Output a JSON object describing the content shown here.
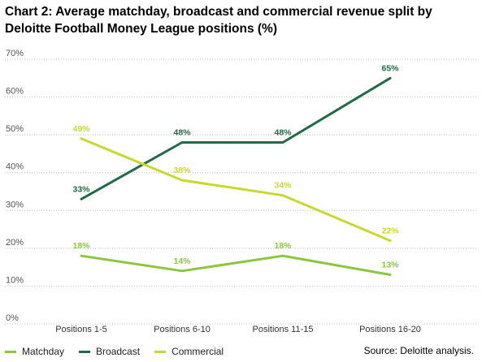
{
  "chart_data": {
    "type": "line",
    "title": "Chart 2: Average matchday, broadcast and commercial revenue split by Deloitte Football Money League positions (%)",
    "categories": [
      "Positions 1-5",
      "Positions 6-10",
      "Positions 11-15",
      "Positions 16-20"
    ],
    "y_ticks": [
      "0%",
      "10%",
      "20%",
      "30%",
      "40%",
      "50%",
      "60%",
      "70%"
    ],
    "ylim": [
      0,
      70
    ],
    "grid": true,
    "legend_position": "bottom-left",
    "series": [
      {
        "name": "Matchday",
        "color": "#8cc63f",
        "values": [
          18,
          14,
          18,
          13
        ],
        "labels": [
          "18%",
          "14%",
          "18%",
          "13%"
        ]
      },
      {
        "name": "Broadcast",
        "color": "#1f6b45",
        "values": [
          33,
          48,
          48,
          65
        ],
        "labels": [
          "33%",
          "48%",
          "48%",
          "65%"
        ]
      },
      {
        "name": "Commercial",
        "color": "#c8d82e",
        "values": [
          49,
          38,
          34,
          22
        ],
        "labels": [
          "49%",
          "38%",
          "34%",
          "22%"
        ]
      }
    ],
    "source": "Source: Deloitte analysis."
  }
}
